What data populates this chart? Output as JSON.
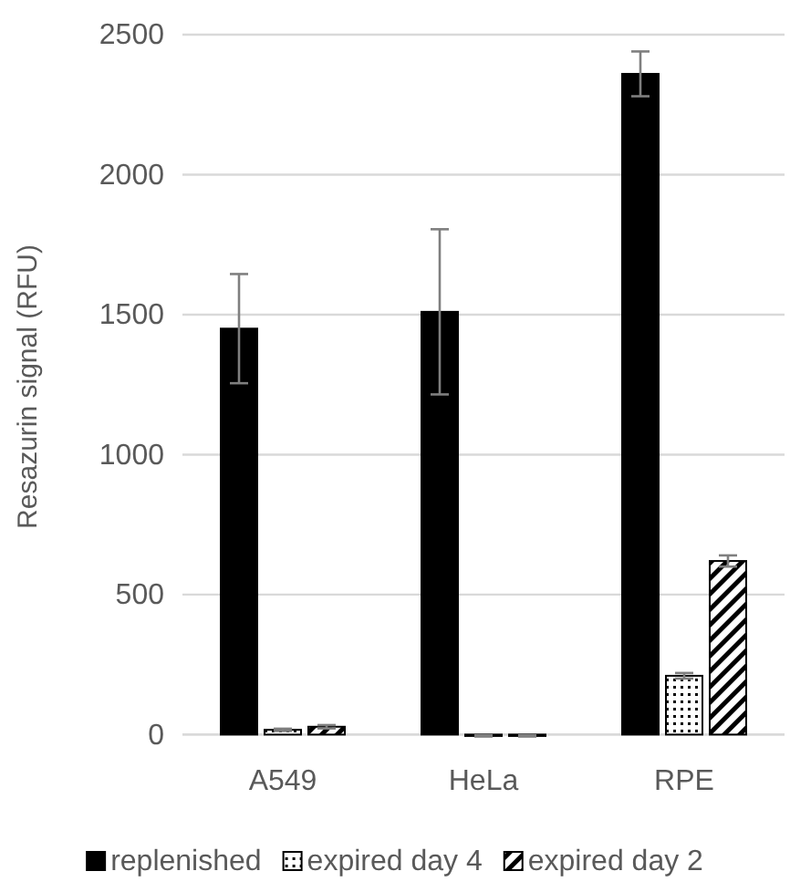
{
  "chart_data": {
    "type": "bar",
    "ylabel": "Resazurin signal (RFU)",
    "categories": [
      "A549",
      "HeLa",
      "RPE"
    ],
    "series": [
      {
        "name": "replenished",
        "color": "#000000",
        "values": [
          1450,
          1510,
          2360
        ],
        "errors": [
          195,
          295,
          80
        ]
      },
      {
        "name": "expired day 4",
        "color": "#000000",
        "values": [
          17,
          -5,
          210
        ],
        "errors": [
          4,
          2,
          10
        ]
      },
      {
        "name": "expired day 2",
        "color": "#000000",
        "values": [
          28,
          -5,
          620
        ],
        "errors": [
          6,
          2,
          20
        ]
      }
    ],
    "ylim": [
      -15,
      2500
    ],
    "yticks": [
      0,
      500,
      1000,
      1500,
      2000,
      2500
    ],
    "grid": "y",
    "legend": "bottom"
  }
}
